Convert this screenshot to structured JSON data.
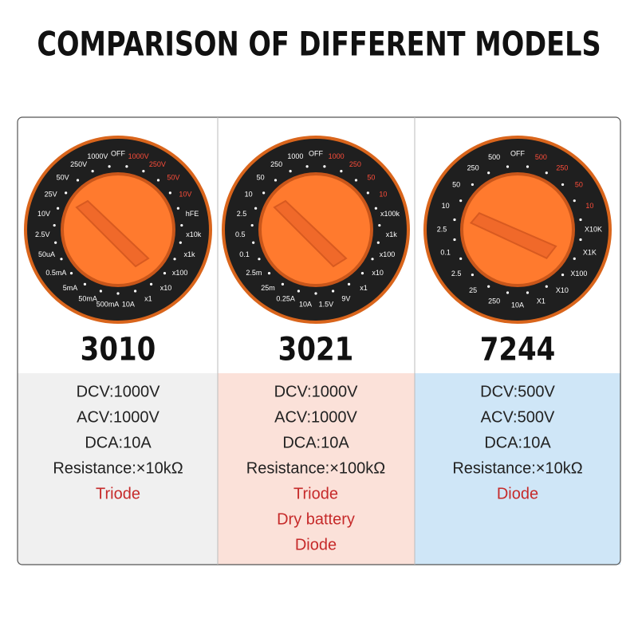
{
  "title": "COMPARISON OF DIFFERENT MODELS",
  "models": [
    {
      "name": "3010",
      "dial_labels": [
        "OFF",
        "1000V",
        "250V",
        "50V",
        "10V",
        "hFE",
        "x10k",
        "x1k",
        "x100",
        "x10",
        "x1",
        "10A",
        "500mA",
        "50mA",
        "5mA",
        "0.5mA",
        "50uA",
        "2.5V",
        "10V",
        "25V",
        "50V",
        "250V",
        "1000V"
      ],
      "specs": [
        "DCV:1000V",
        "ACV:1000V",
        "DCA:10A",
        "Resistance:×10kΩ"
      ],
      "features": [
        "Triode"
      ]
    },
    {
      "name": "3021",
      "dial_labels": [
        "OFF",
        "1000",
        "250",
        "50",
        "10",
        "x100k",
        "x1k",
        "x100",
        "x10",
        "x1",
        "9V",
        "1.5V",
        "10A",
        "0.25A",
        "25m",
        "2.5m",
        "0.1",
        "0.5",
        "2.5",
        "10",
        "50",
        "250",
        "1000"
      ],
      "specs": [
        "DCV:1000V",
        "ACV:1000V",
        "DCA:10A",
        "Resistance:×100kΩ"
      ],
      "features": [
        "Triode",
        "Dry battery",
        "Diode"
      ]
    },
    {
      "name": "7244",
      "dial_labels": [
        "OFF",
        "500",
        "250",
        "50",
        "10",
        "X10K",
        "X1K",
        "X100",
        "X10",
        "X1",
        "10A",
        "250",
        "25",
        "2.5",
        "0.1",
        "2.5",
        "10",
        "50",
        "250",
        "500"
      ],
      "specs": [
        "DCV:500V",
        "ACV:500V",
        "DCA:10A",
        "Resistance:×10kΩ"
      ],
      "features": [
        "Diode"
      ]
    }
  ]
}
